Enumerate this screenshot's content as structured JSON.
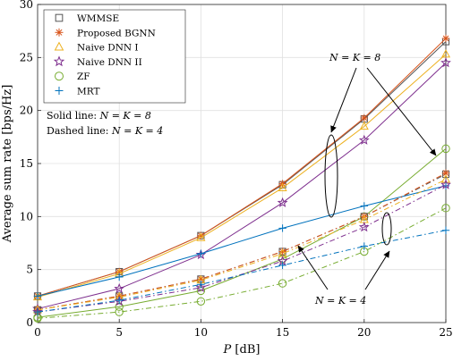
{
  "chart_data": {
    "type": "line",
    "xlabel": {
      "var": "P",
      "unit": " [dB]"
    },
    "ylabel": "Average sum rate [bps/Hz]",
    "x": [
      0,
      5,
      10,
      15,
      20,
      25
    ],
    "xlim": [
      0,
      25
    ],
    "ylim": [
      0,
      30
    ],
    "xticks": [
      "0",
      "5",
      "10",
      "15",
      "20",
      "25"
    ],
    "yticks": [
      "0",
      "5",
      "10",
      "15",
      "20",
      "25",
      "30"
    ],
    "grid": true,
    "legend_position": "top-left",
    "legend": [
      {
        "name": "WMMSE",
        "marker": "square",
        "color": "#555555"
      },
      {
        "name": "Proposed BGNN",
        "marker": "asterisk",
        "color": "#D95319"
      },
      {
        "name": "Naive DNN I",
        "marker": "triangle",
        "color": "#EDB120"
      },
      {
        "name": "Naive DNN II",
        "marker": "star",
        "color": "#7E2F8E"
      },
      {
        "name": "ZF",
        "marker": "circle",
        "color": "#77AC30"
      },
      {
        "name": "MRT",
        "marker": "plus",
        "color": "#0072BD"
      }
    ],
    "series": [
      {
        "name": "WMMSE",
        "group": "N=K=8",
        "style": "solid",
        "color": "#555555",
        "marker": "square",
        "values": [
          2.5,
          4.8,
          8.2,
          13.0,
          19.2,
          26.5
        ]
      },
      {
        "name": "Proposed BGNN",
        "group": "N=K=8",
        "style": "solid",
        "color": "#D95319",
        "marker": "asterisk",
        "values": [
          2.5,
          4.8,
          8.2,
          13.1,
          19.3,
          26.8
        ]
      },
      {
        "name": "Naive DNN I",
        "group": "N=K=8",
        "style": "solid",
        "color": "#EDB120",
        "marker": "triangle",
        "values": [
          2.4,
          4.6,
          8.0,
          12.7,
          18.5,
          25.3
        ]
      },
      {
        "name": "Naive DNN II",
        "group": "N=K=8",
        "style": "solid",
        "color": "#7E2F8E",
        "marker": "star",
        "values": [
          1.3,
          3.2,
          6.4,
          11.3,
          17.2,
          24.5
        ]
      },
      {
        "name": "ZF",
        "group": "N=K=8",
        "style": "solid",
        "color": "#77AC30",
        "marker": "circle",
        "values": [
          0.5,
          1.5,
          3.0,
          6.0,
          10.0,
          16.4
        ]
      },
      {
        "name": "MRT",
        "group": "N=K=8",
        "style": "solid",
        "color": "#0072BD",
        "marker": "plus",
        "values": [
          2.5,
          4.3,
          6.5,
          8.9,
          11.0,
          12.9
        ]
      },
      {
        "name": "WMMSE",
        "group": "N=K=4",
        "style": "dashed",
        "color": "#555555",
        "marker": "square",
        "values": [
          1.2,
          2.5,
          4.1,
          6.7,
          10.0,
          14.0
        ]
      },
      {
        "name": "Proposed BGNN",
        "group": "N=K=4",
        "style": "dashed",
        "color": "#D95319",
        "marker": "asterisk",
        "values": [
          1.2,
          2.5,
          4.1,
          6.7,
          10.0,
          14.1
        ]
      },
      {
        "name": "Naive DNN I",
        "group": "N=K=4",
        "style": "dashed",
        "color": "#EDB120",
        "marker": "triangle",
        "values": [
          1.2,
          2.4,
          4.0,
          6.5,
          9.7,
          13.5
        ]
      },
      {
        "name": "Naive DNN II",
        "group": "N=K=4",
        "style": "dashed",
        "color": "#7E2F8E",
        "marker": "star",
        "values": [
          1.0,
          2.0,
          3.3,
          5.8,
          9.0,
          13.0
        ]
      },
      {
        "name": "ZF",
        "group": "N=K=4",
        "style": "dashed",
        "color": "#77AC30",
        "marker": "circle",
        "values": [
          0.4,
          1.0,
          2.0,
          3.7,
          6.7,
          10.8
        ]
      },
      {
        "name": "MRT",
        "group": "N=K=4",
        "style": "dashed",
        "color": "#0072BD",
        "marker": "plus",
        "values": [
          1.0,
          2.1,
          3.6,
          5.4,
          7.2,
          8.7
        ]
      }
    ],
    "annotations": [
      {
        "id": "solid_note",
        "text": "Solid line: ",
        "math": "N = K = 8"
      },
      {
        "id": "dashed_note",
        "text": "Dashed line: ",
        "math": "N = K = 4"
      },
      {
        "id": "label_8",
        "math": "N = K = 8"
      },
      {
        "id": "label_4",
        "math": "N = K = 4"
      }
    ]
  }
}
